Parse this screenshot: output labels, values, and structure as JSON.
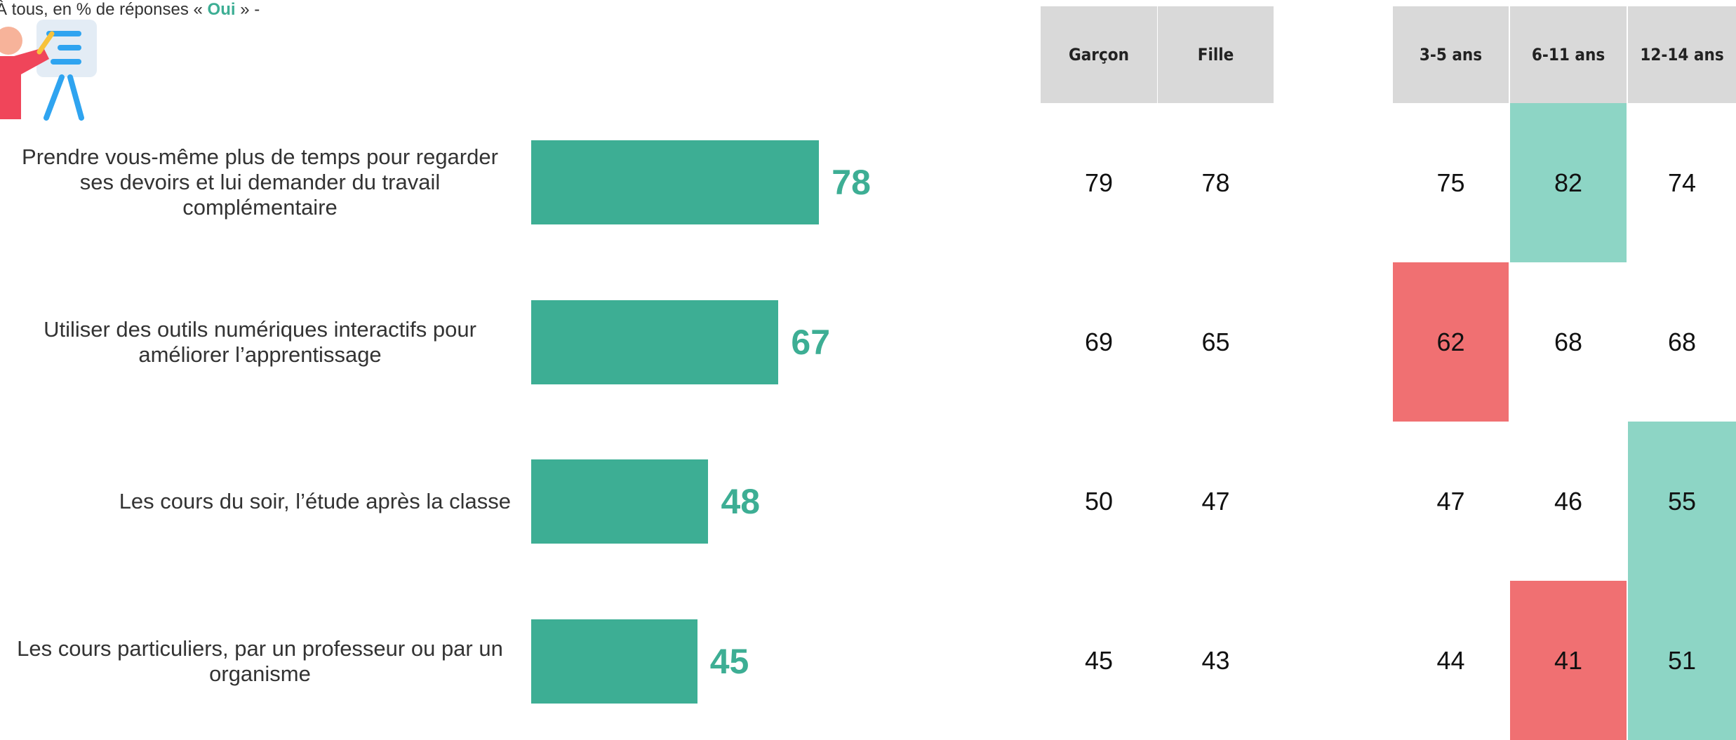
{
  "header": {
    "subtitle_before": "À tous, en % de réponses « ",
    "subtitle_highlight": "Oui",
    "subtitle_after": " » -"
  },
  "chart_data": {
    "type": "bar",
    "orientation": "horizontal",
    "categories": [
      "Prendre vous-même plus de temps pour regarder ses devoirs et lui demander du travail complémentaire",
      "Utiliser des outils numériques interactifs pour améliorer l’apprentissage",
      "Les cours du soir, l’étude après la classe",
      "Les cours particuliers, par un professeur ou par un organisme"
    ],
    "values": [
      78,
      67,
      48,
      45
    ],
    "color": "#3dae94"
  },
  "table": {
    "columns": [
      "Garçon",
      "Fille",
      "3-5 ans",
      "6-11 ans",
      "12-14 ans"
    ],
    "rows": [
      [
        79,
        78,
        75,
        82,
        74
      ],
      [
        69,
        65,
        62,
        68,
        68
      ],
      [
        50,
        47,
        47,
        46,
        55
      ],
      [
        45,
        43,
        44,
        41,
        51
      ]
    ],
    "cell_colors": [
      [
        null,
        null,
        null,
        "#8dd5c5",
        null
      ],
      [
        null,
        null,
        "#f07072",
        null,
        null
      ],
      [
        null,
        null,
        null,
        null,
        "#8dd5c5"
      ],
      [
        null,
        null,
        null,
        "#f07072",
        "#8dd5c5"
      ]
    ]
  }
}
